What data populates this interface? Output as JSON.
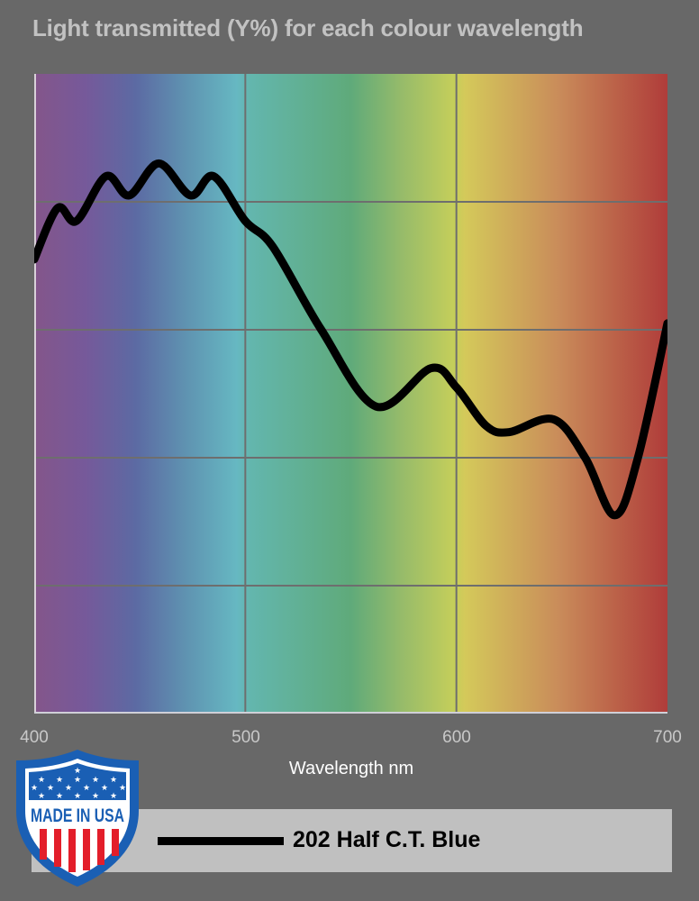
{
  "chart_data": {
    "type": "line",
    "title": "Light transmitted (Y%) for each colour wavelength",
    "xlabel": "Wavelength nm",
    "ylabel": "",
    "xlim": [
      400,
      700
    ],
    "ylim": [
      0,
      100
    ],
    "x_ticks": [
      400,
      500,
      600,
      700
    ],
    "y_gridlines": [
      20,
      40,
      60,
      80
    ],
    "grid": true,
    "background": "visible spectrum gradient (violet to red)",
    "legend_position": "bottom",
    "series": [
      {
        "name": "202 Half C.T. Blue",
        "color": "#000000",
        "x": [
          400,
          411,
          420,
          434,
          445,
          459,
          474,
          485,
          500,
          513,
          536,
          562,
          588,
          600,
          614,
          625,
          646,
          661,
          675,
          686,
          700
        ],
        "values": [
          71,
          79,
          77,
          84,
          81,
          86,
          81,
          84,
          77,
          73,
          60,
          48,
          54,
          51,
          45,
          44,
          46,
          40,
          31,
          40,
          61
        ]
      }
    ]
  },
  "header": {
    "title": "Light transmitted (Y%) for each colour wavelength"
  },
  "axis": {
    "ticks": [
      "400",
      "500",
      "600",
      "700"
    ],
    "xlabel": "Wavelength nm"
  },
  "legend": {
    "label": "202 Half C.T. Blue"
  },
  "badge": {
    "text": "MADE IN USA"
  },
  "colors": {
    "background": "#686868",
    "title": "#c2c2c2",
    "legend_bg": "#c0c0c0",
    "gridline": "#707070",
    "badge_blue": "#1a5fb4",
    "badge_red": "#e31e2a"
  }
}
